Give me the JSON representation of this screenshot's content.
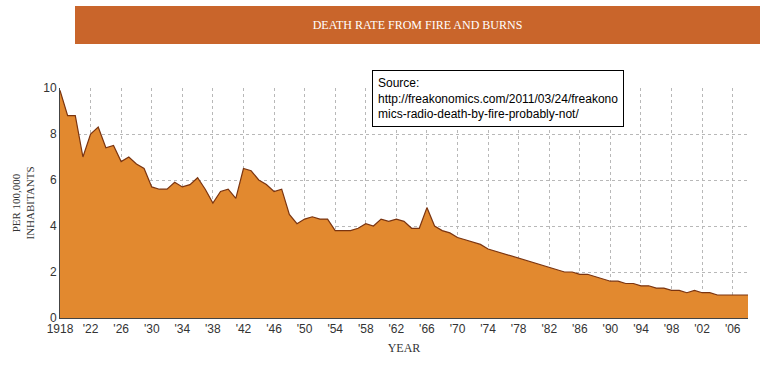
{
  "chart_data": {
    "type": "area",
    "title": "DEATH RATE FROM FIRE AND BURNS",
    "xlabel": "YEAR",
    "ylabel": "PER 100,000\nINHABITANTS",
    "annotation": "Source:\nhttp://freakonomics.com/2011/03/24/freakono\nmics-radio-death-by-fire-probably-not/",
    "color": "#e2892f",
    "grid": true,
    "x": [
      1918,
      1919,
      1920,
      1921,
      1922,
      1923,
      1924,
      1925,
      1926,
      1927,
      1928,
      1929,
      1930,
      1931,
      1932,
      1933,
      1934,
      1935,
      1936,
      1937,
      1938,
      1939,
      1940,
      1941,
      1942,
      1943,
      1944,
      1945,
      1946,
      1947,
      1948,
      1949,
      1950,
      1951,
      1952,
      1953,
      1954,
      1955,
      1956,
      1957,
      1958,
      1959,
      1960,
      1961,
      1962,
      1963,
      1964,
      1965,
      1966,
      1967,
      1968,
      1969,
      1970,
      1971,
      1972,
      1973,
      1974,
      1975,
      1976,
      1977,
      1978,
      1979,
      1980,
      1981,
      1982,
      1983,
      1984,
      1985,
      1986,
      1987,
      1988,
      1989,
      1990,
      1991,
      1992,
      1993,
      1994,
      1995,
      1996,
      1997,
      1998,
      1999,
      2000,
      2001,
      2002,
      2003,
      2004,
      2005,
      2006,
      2007,
      2008
    ],
    "values": [
      9.9,
      8.8,
      8.8,
      7.0,
      8.0,
      8.3,
      7.4,
      7.5,
      6.8,
      7.0,
      6.7,
      6.5,
      5.7,
      5.6,
      5.6,
      5.9,
      5.7,
      5.8,
      6.1,
      5.6,
      5.0,
      5.5,
      5.6,
      5.2,
      6.5,
      6.4,
      6.0,
      5.8,
      5.5,
      5.6,
      4.5,
      4.1,
      4.3,
      4.4,
      4.3,
      4.3,
      3.8,
      3.8,
      3.8,
      3.9,
      4.1,
      4.0,
      4.3,
      4.2,
      4.3,
      4.2,
      3.9,
      3.9,
      4.8,
      4.0,
      3.8,
      3.7,
      3.5,
      3.4,
      3.3,
      3.2,
      3.0,
      2.9,
      2.8,
      2.7,
      2.6,
      2.5,
      2.4,
      2.3,
      2.2,
      2.1,
      2.0,
      2.0,
      1.9,
      1.9,
      1.8,
      1.7,
      1.6,
      1.6,
      1.5,
      1.5,
      1.4,
      1.4,
      1.3,
      1.3,
      1.2,
      1.2,
      1.1,
      1.2,
      1.1,
      1.1,
      1.0,
      1.0,
      1.0,
      1.0,
      1.0
    ],
    "xlim": [
      1918,
      2008
    ],
    "xticks": [
      1918,
      {
        "value": 1922,
        "label": "'22"
      },
      {
        "value": 1926,
        "label": "'26"
      },
      {
        "value": 1930,
        "label": "'30"
      },
      {
        "value": 1934,
        "label": "'34"
      },
      {
        "value": 1938,
        "label": "'38"
      },
      {
        "value": 1942,
        "label": "'42"
      },
      {
        "value": 1946,
        "label": "'46"
      },
      {
        "value": 1950,
        "label": "'50"
      },
      {
        "value": 1954,
        "label": "'54"
      },
      {
        "value": 1958,
        "label": "'58"
      },
      {
        "value": 1962,
        "label": "'62"
      },
      {
        "value": 1966,
        "label": "'66"
      },
      {
        "value": 1970,
        "label": "'70"
      },
      {
        "value": 1974,
        "label": "'74"
      },
      {
        "value": 1978,
        "label": "'78"
      },
      {
        "value": 1982,
        "label": "'82"
      },
      {
        "value": 1986,
        "label": "'86"
      },
      {
        "value": 1990,
        "label": "'90"
      },
      {
        "value": 1994,
        "label": "'94"
      },
      {
        "value": 1998,
        "label": "'98"
      },
      {
        "value": 2002,
        "label": "'02"
      },
      {
        "value": 2006,
        "label": "'06"
      }
    ],
    "ylim": [
      0,
      10
    ],
    "yticks": [
      0,
      2,
      4,
      6,
      8,
      10
    ]
  }
}
